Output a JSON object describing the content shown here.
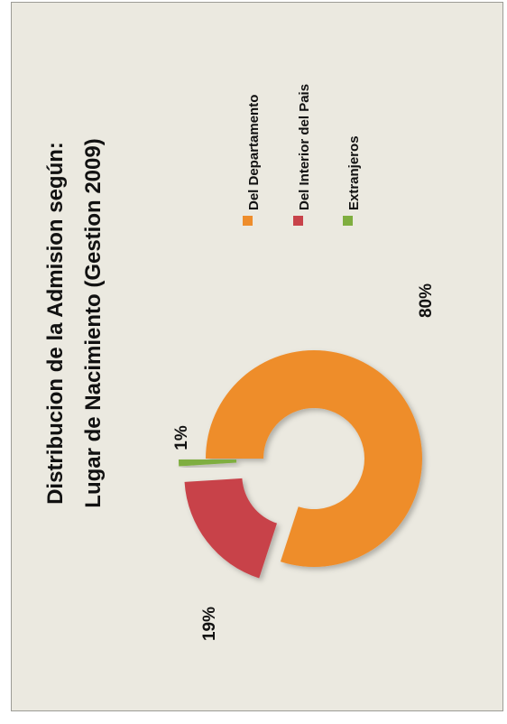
{
  "chart_data": {
    "type": "pie",
    "variant": "doughnut",
    "title_lines": [
      "Distribucion de la Admision según:",
      "Lugar de Nacimiento (Gestion 2009)"
    ],
    "categories": [
      "Del Departamento",
      "Del Interior del Pais",
      "Extranjeros"
    ],
    "values": [
      80,
      19,
      1
    ],
    "data_labels": [
      "80%",
      "19%",
      "1%"
    ],
    "colors": [
      "#ee8d2c",
      "#c8434a",
      "#7fae3f"
    ],
    "exploded": true,
    "legend_position": "right",
    "orientation": "rotated-90-counterclockwise"
  }
}
